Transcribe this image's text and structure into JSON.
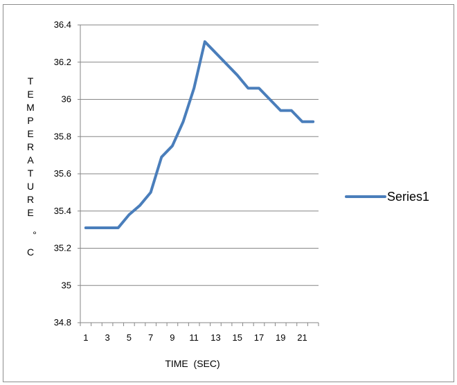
{
  "chart_data": {
    "type": "line",
    "x": [
      1,
      2,
      3,
      4,
      5,
      6,
      7,
      8,
      9,
      10,
      11,
      12,
      13,
      14,
      15,
      16,
      17,
      18,
      19,
      20,
      21,
      22
    ],
    "x_tick_labels": [
      "1",
      "3",
      "5",
      "7",
      "9",
      "11",
      "13",
      "15",
      "17",
      "19",
      "21"
    ],
    "series": [
      {
        "name": "Series1",
        "color": "#4a7ebb",
        "values": [
          35.31,
          35.31,
          35.31,
          35.31,
          35.38,
          35.43,
          35.5,
          35.69,
          35.75,
          35.88,
          36.06,
          36.31,
          36.25,
          36.19,
          36.13,
          36.06,
          36.06,
          36.0,
          35.94,
          35.94,
          35.88,
          35.88
        ]
      }
    ],
    "ylim": [
      34.8,
      36.4
    ],
    "y_ticks": [
      "34.8",
      "35",
      "35.2",
      "35.4",
      "35.6",
      "35.8",
      "36",
      "36.2",
      "36.4"
    ],
    "xlabel": "TIME  (SEC)",
    "ylabel_letters": [
      "T",
      "E",
      "M",
      "P",
      "E",
      "R",
      "A",
      "T",
      "U",
      "R",
      "E",
      "",
      "°",
      "C"
    ],
    "grid": true,
    "legend_position": "right"
  }
}
